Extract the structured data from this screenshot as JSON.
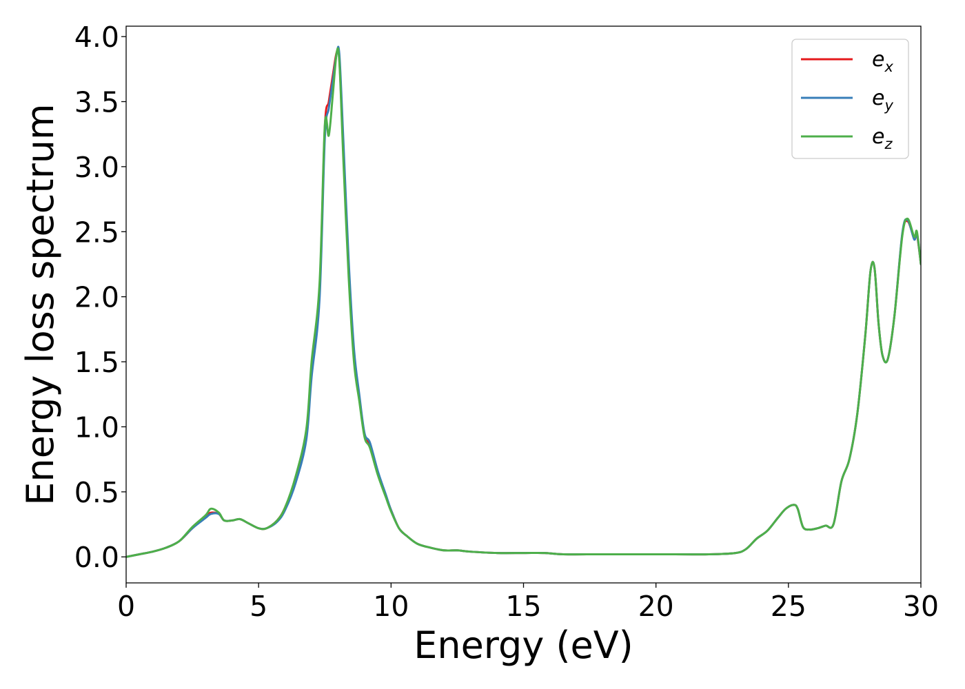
{
  "chart_data": {
    "type": "line",
    "xlabel": "Energy (eV)",
    "ylabel": "Energy loss spectrum",
    "xlim": [
      0,
      30
    ],
    "ylim": [
      -0.2,
      4.08
    ],
    "xticks": [
      0,
      5,
      10,
      15,
      20,
      25,
      30
    ],
    "xtick_labels": [
      "0",
      "5",
      "10",
      "15",
      "20",
      "25",
      "30"
    ],
    "yticks": [
      0.0,
      0.5,
      1.0,
      1.5,
      2.0,
      2.5,
      3.0,
      3.5,
      4.0
    ],
    "ytick_labels": [
      "0.0",
      "0.5",
      "1.0",
      "1.5",
      "2.0",
      "2.5",
      "3.0",
      "3.5",
      "4.0"
    ],
    "grid": false,
    "legend_position": "top-right",
    "series": [
      {
        "name": "e_x",
        "legend_base": "e",
        "legend_sub": "x",
        "color": "#e41a1c",
        "x": [
          0,
          0.5,
          1,
          1.5,
          2,
          2.5,
          3,
          3.2,
          3.5,
          3.7,
          4,
          4.3,
          4.6,
          5,
          5.3,
          5.7,
          6,
          6.4,
          6.8,
          7,
          7.3,
          7.5,
          7.65,
          7.8,
          7.95,
          8.05,
          8.2,
          8.4,
          8.6,
          8.8,
          9,
          9.2,
          9.5,
          9.8,
          10,
          10.3,
          10.6,
          11,
          11.5,
          12,
          12.5,
          13,
          14,
          15,
          15.8,
          16.5,
          18,
          20,
          22,
          23,
          23.4,
          23.8,
          24.2,
          24.6,
          24.9,
          25.2,
          25.35,
          25.55,
          25.8,
          26.1,
          26.4,
          26.7,
          27,
          27.3,
          27.6,
          27.9,
          28.1,
          28.25,
          28.4,
          28.55,
          28.75,
          29,
          29.3,
          29.5,
          29.75,
          29.85,
          30
        ],
        "y": [
          0.0,
          0.02,
          0.04,
          0.07,
          0.12,
          0.22,
          0.31,
          0.34,
          0.33,
          0.28,
          0.28,
          0.29,
          0.26,
          0.22,
          0.22,
          0.28,
          0.38,
          0.6,
          0.95,
          1.45,
          2.05,
          3.3,
          3.5,
          3.7,
          3.88,
          3.82,
          3.1,
          2.2,
          1.55,
          1.22,
          0.93,
          0.86,
          0.65,
          0.47,
          0.36,
          0.22,
          0.16,
          0.1,
          0.07,
          0.05,
          0.05,
          0.04,
          0.03,
          0.03,
          0.03,
          0.02,
          0.02,
          0.02,
          0.02,
          0.03,
          0.06,
          0.14,
          0.2,
          0.3,
          0.37,
          0.4,
          0.37,
          0.23,
          0.21,
          0.22,
          0.24,
          0.25,
          0.58,
          0.75,
          1.1,
          1.7,
          2.2,
          2.22,
          1.8,
          1.55,
          1.52,
          1.85,
          2.48,
          2.58,
          2.45,
          2.48,
          2.25
        ]
      },
      {
        "name": "e_y",
        "legend_base": "e",
        "legend_sub": "y",
        "color": "#377eb8",
        "x": [
          0,
          0.5,
          1,
          1.5,
          2,
          2.5,
          3,
          3.2,
          3.5,
          3.7,
          4,
          4.3,
          4.6,
          5,
          5.3,
          5.7,
          6,
          6.4,
          6.8,
          7,
          7.3,
          7.5,
          7.65,
          7.8,
          7.95,
          8.05,
          8.2,
          8.4,
          8.6,
          8.8,
          9,
          9.2,
          9.5,
          9.8,
          10,
          10.3,
          10.6,
          11,
          11.5,
          12,
          12.5,
          13,
          14,
          15,
          15.8,
          16.5,
          18,
          20,
          22,
          23,
          23.4,
          23.8,
          24.2,
          24.6,
          24.9,
          25.2,
          25.35,
          25.55,
          25.8,
          26.1,
          26.4,
          26.7,
          27,
          27.3,
          27.6,
          27.9,
          28.1,
          28.25,
          28.4,
          28.55,
          28.75,
          29,
          29.3,
          29.5,
          29.75,
          29.85,
          30
        ],
        "y": [
          0.0,
          0.02,
          0.04,
          0.07,
          0.12,
          0.22,
          0.3,
          0.33,
          0.33,
          0.28,
          0.28,
          0.29,
          0.26,
          0.22,
          0.22,
          0.27,
          0.36,
          0.57,
          0.9,
          1.38,
          1.98,
          3.22,
          3.45,
          3.66,
          3.87,
          3.86,
          3.2,
          2.28,
          1.6,
          1.25,
          0.95,
          0.88,
          0.66,
          0.48,
          0.36,
          0.22,
          0.16,
          0.1,
          0.07,
          0.05,
          0.05,
          0.04,
          0.03,
          0.03,
          0.03,
          0.02,
          0.02,
          0.02,
          0.02,
          0.03,
          0.06,
          0.14,
          0.2,
          0.3,
          0.37,
          0.4,
          0.37,
          0.23,
          0.21,
          0.22,
          0.24,
          0.25,
          0.58,
          0.75,
          1.1,
          1.7,
          2.2,
          2.22,
          1.8,
          1.55,
          1.52,
          1.85,
          2.49,
          2.59,
          2.44,
          2.49,
          2.25
        ]
      },
      {
        "name": "e_z",
        "legend_base": "e",
        "legend_sub": "z",
        "color": "#4daf4a",
        "x": [
          0,
          0.5,
          1,
          1.5,
          2,
          2.5,
          3,
          3.2,
          3.5,
          3.7,
          4,
          4.3,
          4.6,
          5,
          5.3,
          5.7,
          6,
          6.4,
          6.8,
          7,
          7.3,
          7.5,
          7.65,
          7.8,
          7.95,
          8.05,
          8.2,
          8.4,
          8.6,
          8.8,
          9,
          9.2,
          9.5,
          9.8,
          10,
          10.3,
          10.6,
          11,
          11.5,
          12,
          12.5,
          13,
          14,
          15,
          15.8,
          16.5,
          18,
          20,
          22,
          23,
          23.4,
          23.8,
          24.2,
          24.6,
          24.9,
          25.2,
          25.35,
          25.55,
          25.8,
          26.1,
          26.4,
          26.7,
          27,
          27.3,
          27.6,
          27.9,
          28.1,
          28.25,
          28.4,
          28.55,
          28.75,
          29,
          29.3,
          29.5,
          29.75,
          29.85,
          30
        ],
        "y": [
          0.0,
          0.02,
          0.04,
          0.07,
          0.12,
          0.23,
          0.32,
          0.37,
          0.34,
          0.28,
          0.28,
          0.29,
          0.26,
          0.22,
          0.22,
          0.28,
          0.38,
          0.62,
          0.98,
          1.5,
          2.1,
          3.32,
          3.24,
          3.55,
          3.88,
          3.8,
          3.05,
          2.15,
          1.5,
          1.2,
          0.92,
          0.84,
          0.63,
          0.46,
          0.35,
          0.22,
          0.16,
          0.1,
          0.07,
          0.05,
          0.05,
          0.04,
          0.03,
          0.03,
          0.03,
          0.02,
          0.02,
          0.02,
          0.02,
          0.03,
          0.06,
          0.14,
          0.2,
          0.3,
          0.37,
          0.4,
          0.37,
          0.23,
          0.21,
          0.22,
          0.24,
          0.25,
          0.58,
          0.75,
          1.1,
          1.7,
          2.2,
          2.22,
          1.8,
          1.55,
          1.52,
          1.85,
          2.47,
          2.6,
          2.46,
          2.5,
          2.25
        ]
      }
    ]
  }
}
